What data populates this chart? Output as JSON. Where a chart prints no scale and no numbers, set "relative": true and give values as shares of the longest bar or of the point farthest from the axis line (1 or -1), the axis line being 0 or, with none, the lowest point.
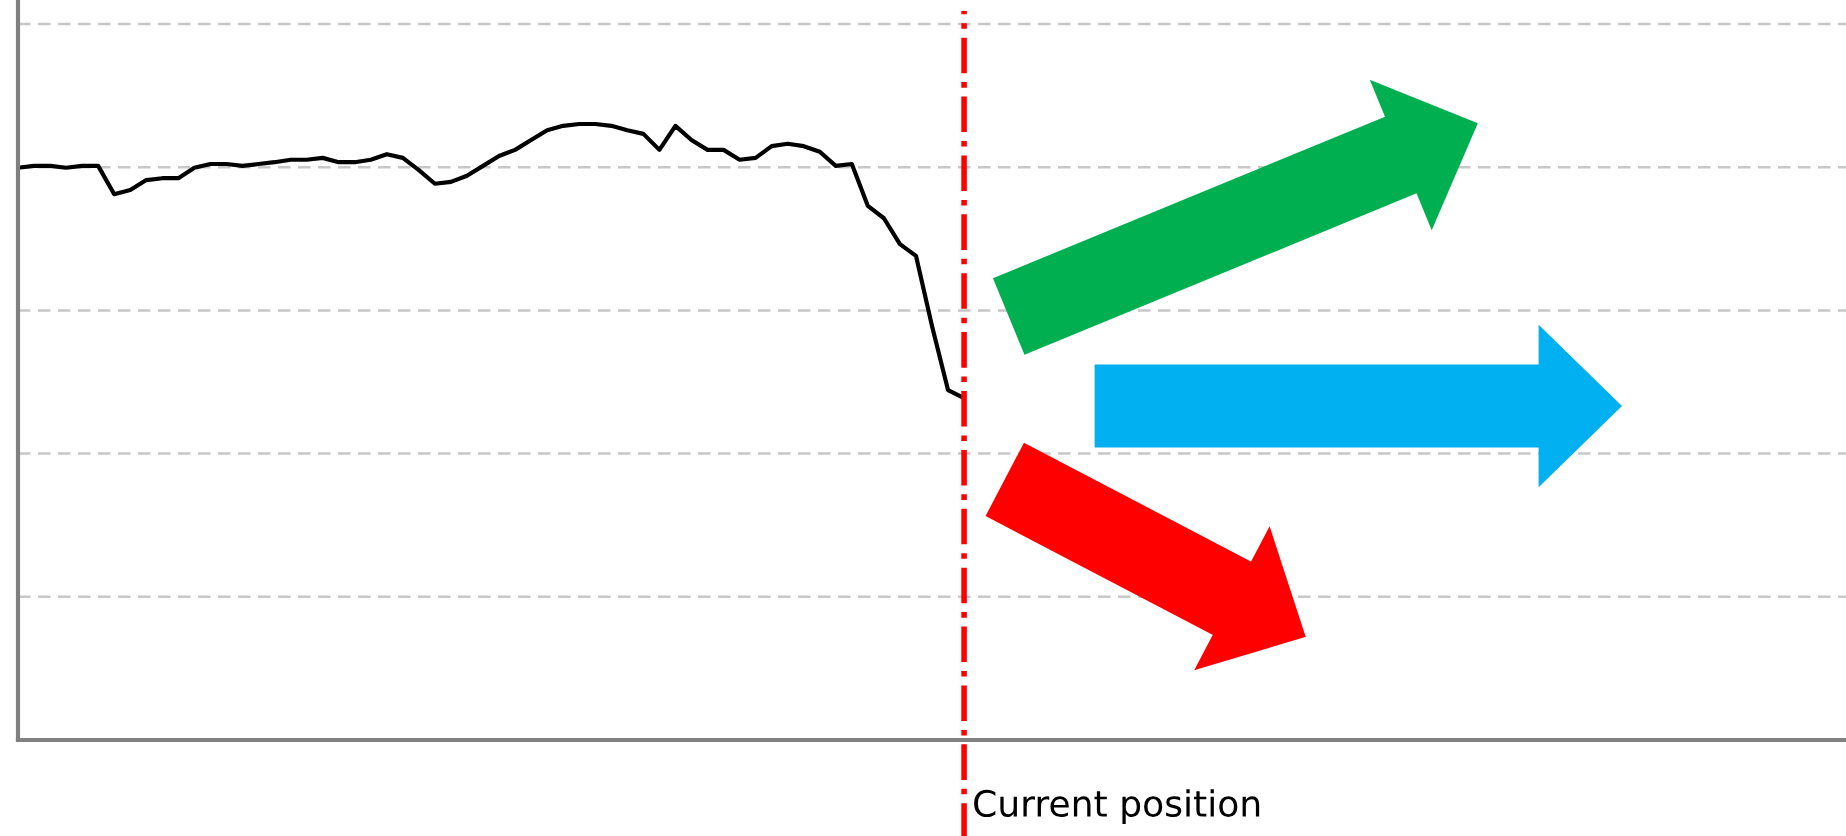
{
  "chart_data": {
    "type": "line",
    "relative": true,
    "categories": [
      null,
      null,
      null,
      null,
      null,
      null,
      null,
      null,
      null,
      null,
      null,
      null,
      null,
      null,
      null,
      null,
      null,
      null,
      null,
      null,
      null,
      null,
      null,
      null,
      null,
      null,
      null,
      null,
      null,
      null,
      null,
      null,
      null,
      null,
      null,
      null,
      null,
      null,
      null,
      null,
      null,
      null,
      null,
      null,
      null,
      null,
      null,
      null,
      null,
      null,
      null,
      null,
      null,
      null,
      null,
      null,
      null,
      null,
      null,
      null,
      null,
      null,
      null,
      null,
      null,
      null,
      null,
      null,
      null,
      null,
      null,
      null,
      null,
      null,
      null,
      null,
      null,
      null,
      null,
      null,
      null,
      null,
      null,
      null,
      null,
      null,
      null,
      null,
      null,
      null,
      null,
      null,
      null,
      null,
      null,
      null,
      null,
      null,
      null,
      null,
      null,
      null,
      null,
      null,
      null,
      null,
      null,
      null,
      null,
      null,
      null,
      null,
      null,
      null,
      null
    ],
    "series": [
      {
        "color": "#000000",
        "values": [
          0.929,
          0.932,
          0.932,
          0.929,
          0.932,
          0.932,
          0.886,
          0.893,
          0.909,
          0.912,
          0.912,
          0.929,
          0.935,
          0.935,
          0.932,
          0.935,
          0.938,
          0.942,
          0.942,
          0.945,
          0.938,
          0.938,
          0.942,
          0.951,
          0.945,
          0.925,
          0.903,
          0.906,
          0.916,
          0.932,
          0.948,
          0.958,
          0.974,
          0.99,
          0.997,
          1,
          1,
          0.997,
          0.99,
          0.984,
          0.958,
          0.997,
          0.974,
          0.958,
          0.958,
          0.942,
          0.945,
          0.964,
          0.968,
          0.964,
          0.955,
          0.932,
          0.935,
          0.867,
          0.847,
          0.805,
          0.786,
          0.672,
          0.568,
          0.555,
          null,
          null,
          null,
          null,
          null,
          null,
          null,
          null,
          null,
          null,
          null,
          null,
          null,
          null,
          null,
          null,
          null,
          null,
          null,
          null,
          null,
          null,
          null,
          null,
          null,
          null,
          null,
          null,
          null,
          null,
          null,
          null,
          null,
          null,
          null,
          null,
          null,
          null,
          null,
          null,
          null,
          null,
          null,
          null,
          null,
          null,
          null,
          null,
          null,
          null,
          null,
          null,
          null,
          null,
          null
        ]
      }
    ],
    "annotations": [
      "Current position"
    ],
    "grid": "y",
    "line_style": "solid",
    "marker": "none"
  }
}
